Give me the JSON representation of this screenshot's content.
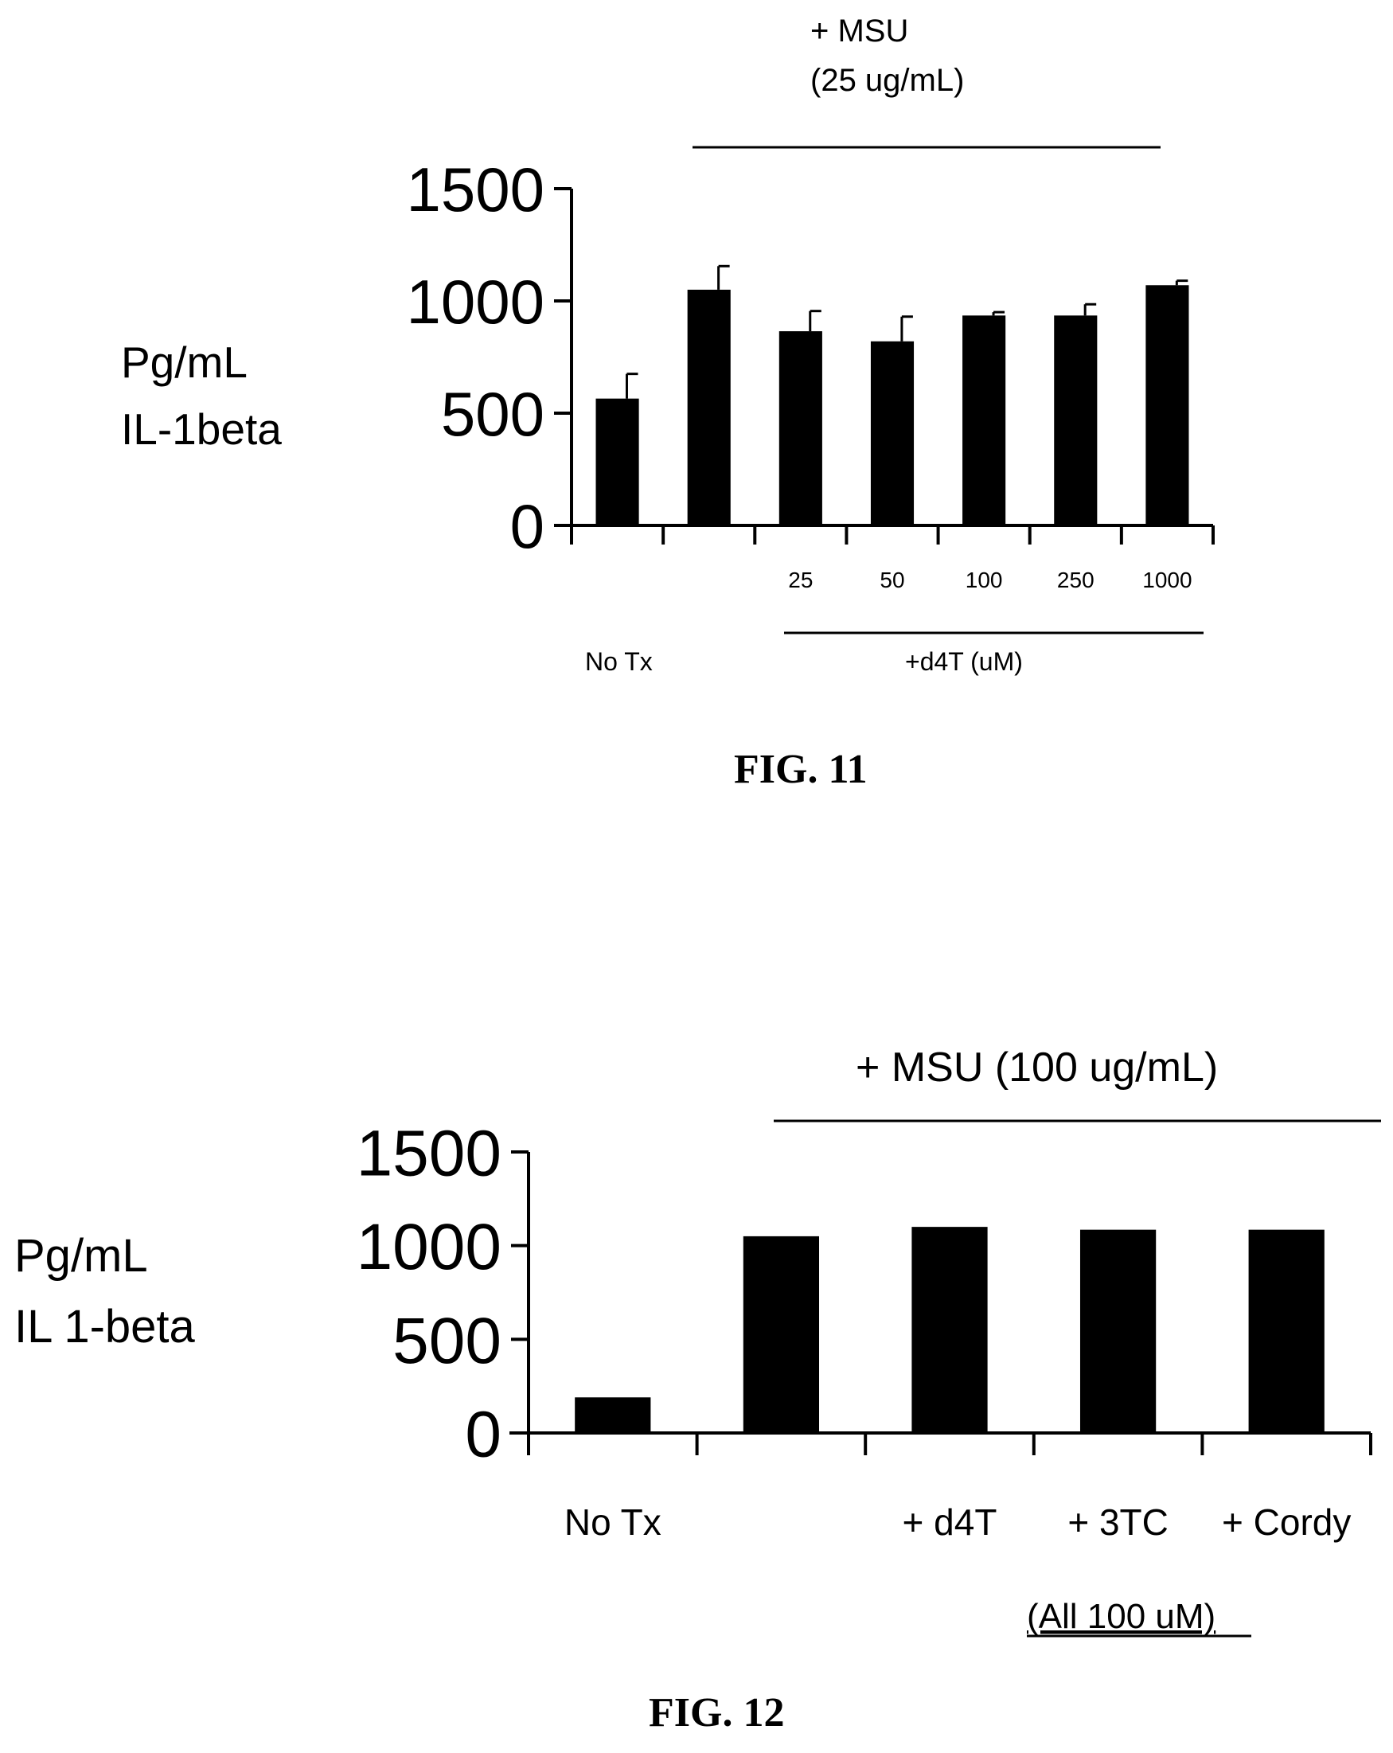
{
  "colors": {
    "bar": "#000000",
    "axis": "#000000",
    "text": "#000000",
    "background": "#ffffff"
  },
  "chart_data": [
    {
      "type": "bar",
      "figure_label": "FIG. 11",
      "ylabel_line1": "Pg/mL",
      "ylabel_line2": "IL-1beta",
      "ylim": [
        0,
        1500
      ],
      "yticks": [
        "0",
        "500",
        "1000",
        "1500"
      ],
      "categories": [
        "No Tx",
        "",
        "25",
        "50",
        "100",
        "250",
        "1000"
      ],
      "values": [
        565,
        1050,
        865,
        820,
        935,
        935,
        1070
      ],
      "error": [
        110,
        105,
        90,
        110,
        15,
        50,
        20
      ],
      "group_top": "+ MSU",
      "group_top_sub": "(25 ug/mL)",
      "group_bottom": "+d4T (uM)",
      "notx_label": "No Tx"
    },
    {
      "type": "bar",
      "figure_label": "FIG. 12",
      "ylabel_line1": "Pg/mL",
      "ylabel_line2": "IL 1-beta",
      "ylim": [
        0,
        1500
      ],
      "yticks": [
        "0",
        "500",
        "1000",
        "1500"
      ],
      "categories": [
        "No Tx",
        "",
        "+ d4T",
        "+ 3TC",
        "+ Cordy"
      ],
      "values": [
        190,
        1050,
        1100,
        1085,
        1085
      ],
      "group_top": "+ MSU (100 ug/mL)",
      "note": "(All 100 uM)"
    }
  ]
}
